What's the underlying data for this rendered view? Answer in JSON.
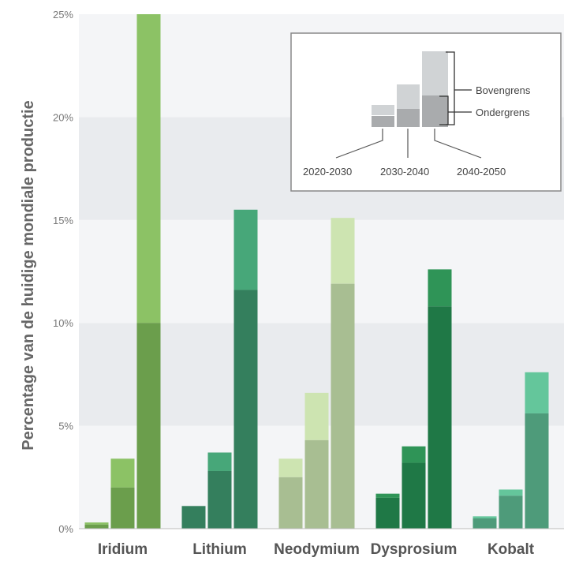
{
  "chart_data": {
    "type": "bar",
    "ylabel": "Percentage van de huidige mondiale productie",
    "ylim": [
      0,
      25
    ],
    "y_ticks": [
      "0%",
      "5%",
      "10%",
      "15%",
      "20%",
      "25%"
    ],
    "y_tick_values": [
      0,
      5,
      10,
      15,
      20,
      25
    ],
    "categories": [
      "Iridium",
      "Lithium",
      "Neodymium",
      "Dysprosium",
      "Kobalt"
    ],
    "periods": [
      "2020-2030",
      "2030-2040",
      "2040-2050"
    ],
    "series": [
      {
        "name": "2020-2030",
        "lower": [
          0.2,
          1.1,
          2.5,
          1.5,
          0.5
        ],
        "upper": [
          0.3,
          1.1,
          3.4,
          1.7,
          0.6
        ]
      },
      {
        "name": "2030-2040",
        "lower": [
          2.0,
          2.8,
          4.3,
          3.2,
          1.6
        ],
        "upper": [
          3.4,
          3.7,
          6.6,
          4.0,
          1.9
        ]
      },
      {
        "name": "2040-2050",
        "lower": [
          10.0,
          11.6,
          11.9,
          10.8,
          5.6
        ],
        "upper": [
          25.0,
          15.5,
          15.1,
          12.6,
          7.6
        ]
      }
    ],
    "colors": {
      "Iridium": {
        "low": "#6b9e4c",
        "high": "#8cc265"
      },
      "Lithium": {
        "low": "#347f5d",
        "high": "#47a779"
      },
      "Neodymium": {
        "low": "#a8be92",
        "high": "#cde4b1"
      },
      "Dysprosium": {
        "low": "#1f7846",
        "high": "#2f9457"
      },
      "Kobalt": {
        "low": "#4e9b7a",
        "high": "#64c69b"
      }
    },
    "grid": "alternating-bands",
    "legend": {
      "position": "top-right",
      "upper_label": "Bovengrens",
      "lower_label": "Ondergrens",
      "periods": [
        "2020-2030",
        "2030-2040",
        "2040-2050"
      ]
    }
  }
}
